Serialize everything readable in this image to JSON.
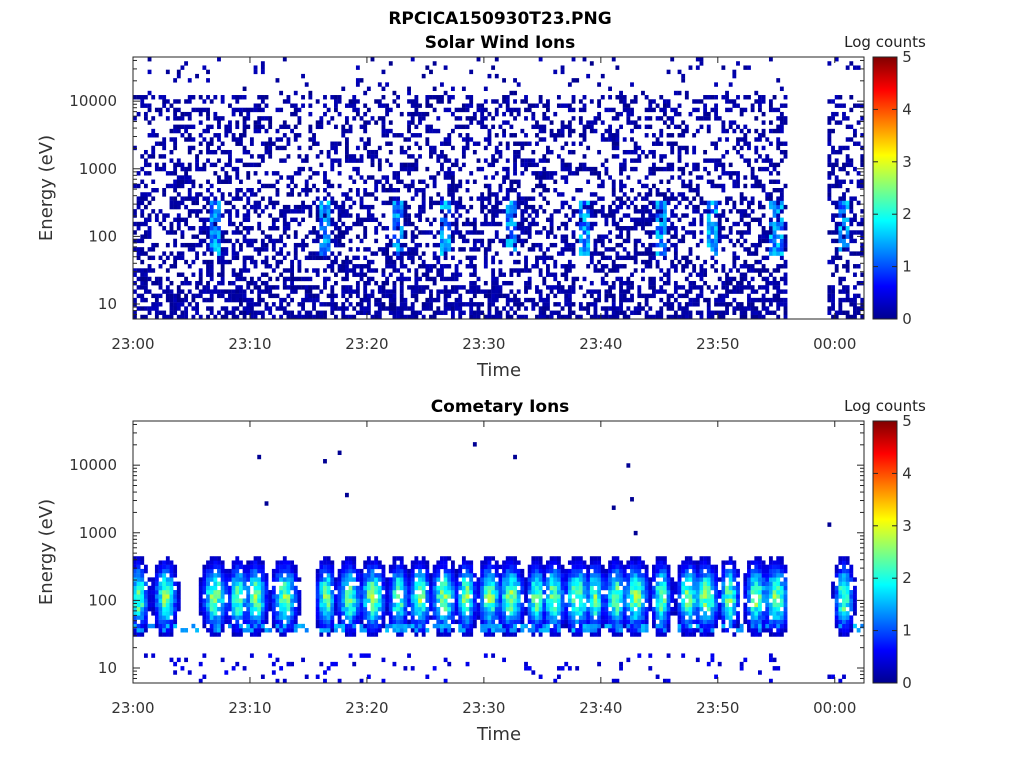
{
  "chart_data": [
    {
      "type": "heatmap",
      "figure_title": "RPCICA150930T23.PNG",
      "title": "Solar Wind Ions",
      "xlabel": "Time",
      "ylabel": "Energy (eV)",
      "x_ticks": [
        "23:00",
        "23:10",
        "23:20",
        "23:30",
        "23:40",
        "23:50",
        "00:00"
      ],
      "x_range": [
        "23:00",
        "00:02"
      ],
      "y_scale": "log",
      "y_ticks": [
        "10",
        "100",
        "1000",
        "10000"
      ],
      "y_range": [
        6,
        45000
      ],
      "colorbar": {
        "label": "Log counts",
        "ticks": [
          "0",
          "1",
          "2",
          "3",
          "4",
          "5"
        ],
        "range": [
          0,
          5
        ],
        "colormap": "jet"
      },
      "data_gap_minutes": [
        56,
        59.5
      ],
      "description_of_content": [
        {
          "energy_range_eV": [
            6,
            30000
          ],
          "log_counts_typical": 0.1
        },
        {
          "energy_range_eV": [
            60,
            300
          ],
          "log_counts_max": 1.8
        }
      ]
    },
    {
      "type": "heatmap",
      "title": "Cometary Ions",
      "xlabel": "Time",
      "ylabel": "Energy (eV)",
      "x_ticks": [
        "23:00",
        "23:10",
        "23:20",
        "23:30",
        "23:40",
        "23:50",
        "00:00"
      ],
      "x_range": [
        "23:00",
        "00:02"
      ],
      "y_scale": "log",
      "y_ticks": [
        "10",
        "100",
        "1000",
        "10000"
      ],
      "y_range": [
        6,
        45000
      ],
      "colorbar": {
        "label": "Log counts",
        "ticks": [
          "0",
          "1",
          "2",
          "3",
          "4",
          "5"
        ],
        "range": [
          0,
          5
        ],
        "colormap": "jet"
      },
      "data_gap_minutes": [
        56,
        59.5
      ],
      "bursts_minutes": [
        0.5,
        2.8,
        7.0,
        9.0,
        10.5,
        13.0,
        16.5,
        18.5,
        20.5,
        22.7,
        24.5,
        26.6,
        28.5,
        30.5,
        32.3,
        34.5,
        36.0,
        38.0,
        39.5,
        41.3,
        43.0,
        45.2,
        47.5,
        49.0,
        51.0,
        53.3,
        55.0,
        60.8
      ],
      "burst_peak_energy_eV": [
        100,
        150
      ],
      "burst_peak_log_counts": 2.7
    }
  ]
}
